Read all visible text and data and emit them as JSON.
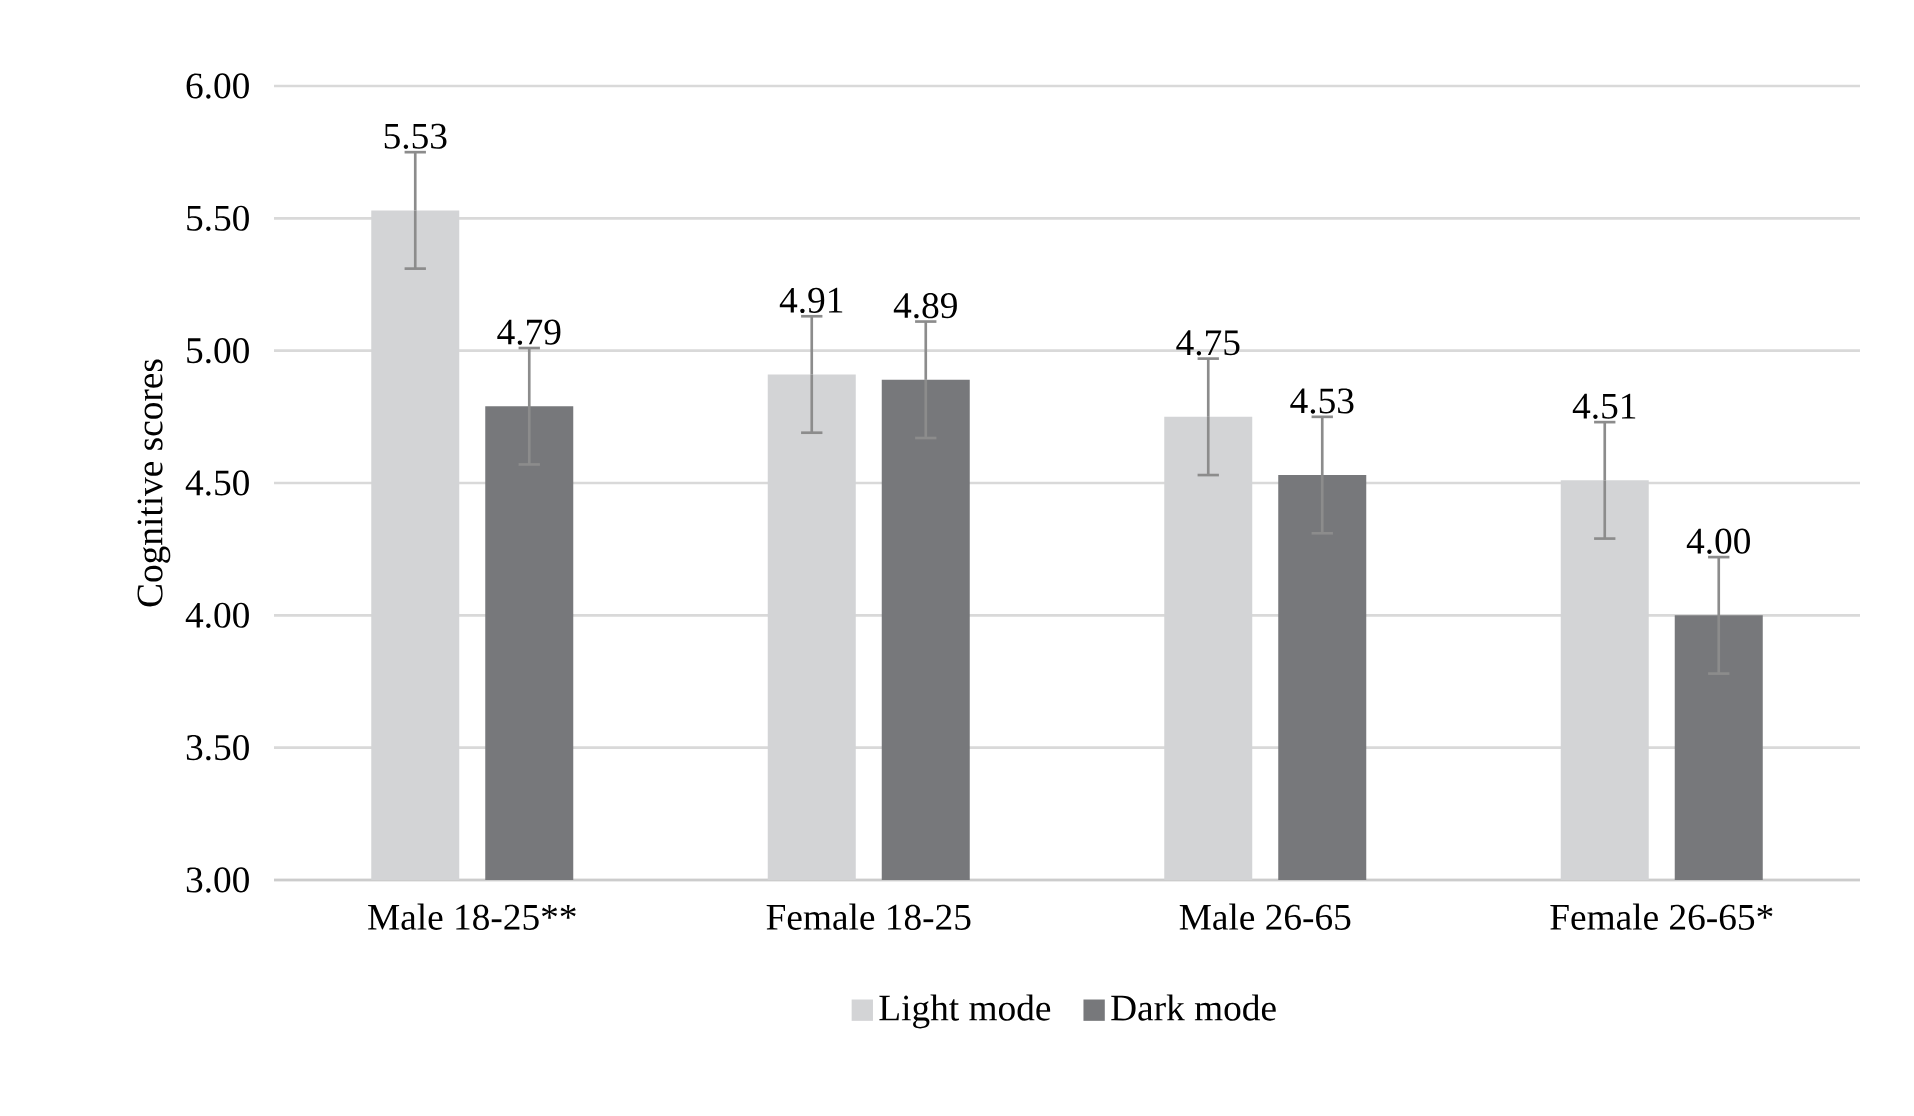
{
  "chart_data": {
    "type": "bar",
    "ylabel": "Cognitive scores",
    "categories": [
      "Male 18-25**",
      "Female 18-25",
      "Male 26-65",
      "Female 26-65*"
    ],
    "series": [
      {
        "name": "Light mode",
        "color": "#d3d4d6",
        "values": [
          5.53,
          4.91,
          4.75,
          4.51
        ],
        "errors": [
          0.22,
          0.22,
          0.22,
          0.22
        ],
        "value_labels": [
          "5.53",
          "4.91",
          "4.75",
          "4.51"
        ]
      },
      {
        "name": "Dark mode",
        "color": "#77787b",
        "values": [
          4.79,
          4.89,
          4.53,
          4.0
        ],
        "errors": [
          0.22,
          0.22,
          0.22,
          0.22
        ],
        "value_labels": [
          "4.79",
          "4.89",
          "4.53",
          "4.00"
        ]
      }
    ],
    "ylim": [
      3.0,
      6.0
    ],
    "yticks": [
      {
        "value": 3.0,
        "label": "3.00"
      },
      {
        "value": 3.5,
        "label": "3.50"
      },
      {
        "value": 4.0,
        "label": "4.00"
      },
      {
        "value": 4.5,
        "label": "4.50"
      },
      {
        "value": 5.0,
        "label": "5.00"
      },
      {
        "value": 5.5,
        "label": "5.50"
      },
      {
        "value": 6.0,
        "label": "6.00"
      }
    ],
    "grid": "y",
    "legend": "bottom"
  }
}
